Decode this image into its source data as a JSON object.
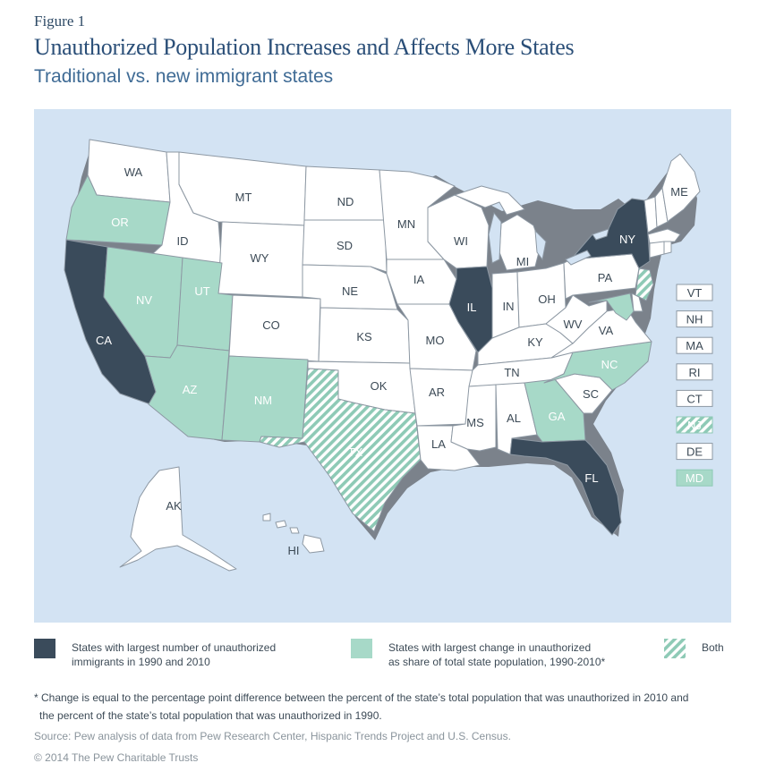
{
  "figure_label": "Figure 1",
  "title": "Unauthorized Population Increases and Affects More States",
  "subtitle": "Traditional vs. new immigrant states",
  "colors": {
    "ocean": "#d3e3f3",
    "state_default": "#ffffff",
    "largest_number": "#3a4b5b",
    "largest_change": "#a7d9c8",
    "both_hatch": "#8ecab6",
    "border": "#8d98a3",
    "shadow": "#6b7178"
  },
  "states": [
    {
      "code": "WA",
      "category": "none"
    },
    {
      "code": "OR",
      "category": "change"
    },
    {
      "code": "CA",
      "category": "number"
    },
    {
      "code": "ID",
      "category": "none"
    },
    {
      "code": "NV",
      "category": "change"
    },
    {
      "code": "MT",
      "category": "none"
    },
    {
      "code": "WY",
      "category": "none"
    },
    {
      "code": "UT",
      "category": "change"
    },
    {
      "code": "AZ",
      "category": "change"
    },
    {
      "code": "CO",
      "category": "none"
    },
    {
      "code": "NM",
      "category": "change"
    },
    {
      "code": "ND",
      "category": "none"
    },
    {
      "code": "SD",
      "category": "none"
    },
    {
      "code": "NE",
      "category": "none"
    },
    {
      "code": "KS",
      "category": "none"
    },
    {
      "code": "OK",
      "category": "none"
    },
    {
      "code": "TX",
      "category": "both"
    },
    {
      "code": "MN",
      "category": "none"
    },
    {
      "code": "IA",
      "category": "none"
    },
    {
      "code": "MO",
      "category": "none"
    },
    {
      "code": "AR",
      "category": "none"
    },
    {
      "code": "LA",
      "category": "none"
    },
    {
      "code": "WI",
      "category": "none"
    },
    {
      "code": "IL",
      "category": "number"
    },
    {
      "code": "MI",
      "category": "none"
    },
    {
      "code": "IN",
      "category": "none"
    },
    {
      "code": "OH",
      "category": "none"
    },
    {
      "code": "KY",
      "category": "none"
    },
    {
      "code": "TN",
      "category": "none"
    },
    {
      "code": "MS",
      "category": "none"
    },
    {
      "code": "AL",
      "category": "none"
    },
    {
      "code": "GA",
      "category": "change"
    },
    {
      "code": "FL",
      "category": "number"
    },
    {
      "code": "SC",
      "category": "none"
    },
    {
      "code": "NC",
      "category": "change"
    },
    {
      "code": "VA",
      "category": "none"
    },
    {
      "code": "WV",
      "category": "none"
    },
    {
      "code": "PA",
      "category": "none"
    },
    {
      "code": "NY",
      "category": "number"
    },
    {
      "code": "ME",
      "category": "none"
    },
    {
      "code": "AK",
      "category": "none"
    },
    {
      "code": "HI",
      "category": "none"
    }
  ],
  "small_states": [
    {
      "code": "VT",
      "category": "none"
    },
    {
      "code": "NH",
      "category": "none"
    },
    {
      "code": "MA",
      "category": "none"
    },
    {
      "code": "RI",
      "category": "none"
    },
    {
      "code": "CT",
      "category": "none"
    },
    {
      "code": "NJ",
      "category": "both"
    },
    {
      "code": "DE",
      "category": "none"
    },
    {
      "code": "MD",
      "category": "change"
    }
  ],
  "legend": {
    "largest_number": "States with largest number of unauthorized immigrants in 1990 and 2010",
    "largest_number_line1": "States with largest number of unauthorized",
    "largest_number_line2": "immigrants in 1990 and 2010",
    "largest_change_line1": "States with largest change in unauthorized",
    "largest_change_line2": "as share of total state population, 1990-2010*",
    "both": "Both"
  },
  "footnote_line1": "* Change is equal to the percentage point difference between the percent of the state’s total population that was unauthorized in 2010 and",
  "footnote_line2": "the percent of the state’s total population that was unauthorized in 1990.",
  "source": "Source: Pew analysis of data from Pew Research Center, Hispanic Trends Project and U.S. Census.",
  "copyright": "© 2014 The Pew Charitable Trusts"
}
